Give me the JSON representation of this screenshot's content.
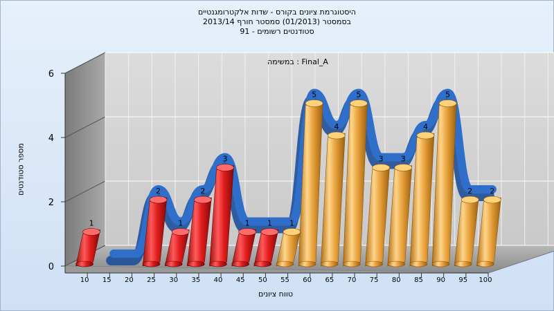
{
  "header": {
    "line1": "היסטוגרמת ציונים בקורס - שדות אלקטרומגנטיים",
    "line2": "בסמסטר  (01/2013)  סמסטר חורף  2013/14",
    "line3": "סטודנטים רשומים - 91"
  },
  "chart_data": {
    "type": "bar",
    "title": "היסטוגרמת ציונים בקורס - שדות אלקטרומגנטיים",
    "subtitle": "בסמסטר  (01/2013)  סמסטר חורף  2013/14 / סטודנטים רשומים - 91",
    "annotation": "במשימה : Final_A",
    "xlabel": "טווח ציונים",
    "ylabel": "מספר סטודנטים",
    "ylim": [
      0,
      6
    ],
    "yticks": [
      0,
      2,
      4,
      6
    ],
    "categories": [
      "10",
      "15",
      "20",
      "25",
      "30",
      "35",
      "40",
      "45",
      "50",
      "55",
      "60",
      "65",
      "70",
      "75",
      "80",
      "85",
      "90",
      "95",
      "100"
    ],
    "values": [
      1,
      0,
      0,
      2,
      1,
      2,
      3,
      1,
      1,
      1,
      5,
      4,
      5,
      3,
      3,
      4,
      5,
      2,
      2
    ],
    "bar_colors": {
      "red": "#e02020",
      "orange": "#e8a23c",
      "curve": "#2f6fca"
    },
    "red_until_category": "50",
    "grid": true,
    "style": "3d"
  }
}
